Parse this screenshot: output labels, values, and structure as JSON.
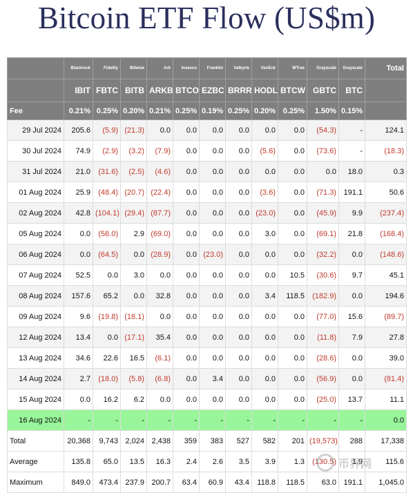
{
  "title": "Bitcoin ETF Flow (US$m)",
  "header": {
    "issuers": [
      "Blackrock",
      "Fidelity",
      "Bitwise",
      "Ark",
      "Invesco",
      "Franklin",
      "Valkyrie",
      "VanEck",
      "WTree",
      "Grayscale",
      "Grayscale"
    ],
    "total_label": "Total",
    "tickers": [
      "IBIT",
      "FBTC",
      "BITB",
      "ARKB",
      "BTCO",
      "EZBC",
      "BRRR",
      "HODL",
      "BTCW",
      "GBTC",
      "BTC"
    ],
    "fee_label": "Fee",
    "fees": [
      "0.21%",
      "0.25%",
      "0.20%",
      "0.21%",
      "0.25%",
      "0.19%",
      "0.25%",
      "0.20%",
      "0.25%",
      "1.50%",
      "0.15%"
    ]
  },
  "rows": [
    {
      "date": "29 Jul 2024",
      "values": [
        "205.6",
        "(5.9)",
        "(21.3)",
        "0.0",
        "0.0",
        "0.0",
        "0.0",
        "0.0",
        "0.0",
        "(54.3)",
        "-"
      ],
      "total": "124.1"
    },
    {
      "date": "30 Jul 2024",
      "values": [
        "74.9",
        "(2.9)",
        "(3.2)",
        "(7.9)",
        "0.0",
        "0.0",
        "0.0",
        "(5.6)",
        "0.0",
        "(73.6)",
        "-"
      ],
      "total": "(18.3)"
    },
    {
      "date": "31 Jul 2024",
      "values": [
        "21.0",
        "(31.6)",
        "(2.5)",
        "(4.6)",
        "0.0",
        "0.0",
        "0.0",
        "0.0",
        "0.0",
        "0.0",
        "18.0"
      ],
      "total": "0.3"
    },
    {
      "date": "01 Aug 2024",
      "values": [
        "25.9",
        "(48.4)",
        "(20.7)",
        "(22.4)",
        "0.0",
        "0.0",
        "0.0",
        "(3.6)",
        "0.0",
        "(71.3)",
        "191.1"
      ],
      "total": "50.6"
    },
    {
      "date": "02 Aug 2024",
      "values": [
        "42.8",
        "(104.1)",
        "(29.4)",
        "(87.7)",
        "0.0",
        "0.0",
        "0.0",
        "(23.0)",
        "0.0",
        "(45.9)",
        "9.9"
      ],
      "total": "(237.4)"
    },
    {
      "date": "05 Aug 2024",
      "values": [
        "0.0",
        "(58.0)",
        "2.9",
        "(69.0)",
        "0.0",
        "0.0",
        "0.0",
        "3.0",
        "0.0",
        "(69.1)",
        "21.8"
      ],
      "total": "(168.4)"
    },
    {
      "date": "06 Aug 2024",
      "values": [
        "0.0",
        "(64.5)",
        "0.0",
        "(28.9)",
        "0.0",
        "(23.0)",
        "0.0",
        "0.0",
        "0.0",
        "(32.2)",
        "0.0"
      ],
      "total": "(148.6)"
    },
    {
      "date": "07 Aug 2024",
      "values": [
        "52.5",
        "0.0",
        "3.0",
        "0.0",
        "0.0",
        "0.0",
        "0.0",
        "0.0",
        "10.5",
        "(30.6)",
        "9.7"
      ],
      "total": "45.1"
    },
    {
      "date": "08 Aug 2024",
      "values": [
        "157.6",
        "65.2",
        "0.0",
        "32.8",
        "0.0",
        "0.0",
        "0.0",
        "3.4",
        "118.5",
        "(182.9)",
        "0.0"
      ],
      "total": "194.6"
    },
    {
      "date": "09 Aug 2024",
      "values": [
        "9.6",
        "(19.8)",
        "(18.1)",
        "0.0",
        "0.0",
        "0.0",
        "0.0",
        "0.0",
        "0.0",
        "(77.0)",
        "15.6"
      ],
      "total": "(89.7)"
    },
    {
      "date": "12 Aug 2024",
      "values": [
        "13.4",
        "0.0",
        "(17.1)",
        "35.4",
        "0.0",
        "0.0",
        "0.0",
        "0.0",
        "0.0",
        "(11.8)",
        "7.9"
      ],
      "total": "27.8"
    },
    {
      "date": "13 Aug 2024",
      "values": [
        "34.6",
        "22.6",
        "16.5",
        "(6.1)",
        "0.0",
        "0.0",
        "0.0",
        "0.0",
        "0.0",
        "(28.6)",
        "0.0"
      ],
      "total": "39.0"
    },
    {
      "date": "14 Aug 2024",
      "values": [
        "2.7",
        "(18.0)",
        "(5.8)",
        "(6.8)",
        "0.0",
        "3.4",
        "0.0",
        "0.0",
        "0.0",
        "(56.9)",
        "0.0"
      ],
      "total": "(81.4)"
    },
    {
      "date": "15 Aug 2024",
      "values": [
        "0.0",
        "16.2",
        "6.2",
        "0.0",
        "0.0",
        "0.0",
        "0.0",
        "0.0",
        "0.0",
        "(25.0)",
        "13.7"
      ],
      "total": "11.1"
    },
    {
      "date": "16 Aug 2024",
      "values": [
        "-",
        "-",
        "-",
        "-",
        "-",
        "-",
        "-",
        "-",
        "-",
        "-",
        "-"
      ],
      "total": "0.0",
      "highlight": true
    }
  ],
  "footer": [
    {
      "label": "Total",
      "values": [
        "20,368",
        "9,743",
        "2,024",
        "2,438",
        "359",
        "383",
        "527",
        "582",
        "201",
        "(19,573)",
        "288"
      ],
      "total": "17,338"
    },
    {
      "label": "Average",
      "values": [
        "135.8",
        "65.0",
        "13.5",
        "16.3",
        "2.4",
        "2.6",
        "3.5",
        "3.9",
        "1.3",
        "(130.5)",
        "1.9"
      ],
      "total": "115.6"
    },
    {
      "label": "Maximum",
      "values": [
        "849.0",
        "473.4",
        "237.9",
        "200.7",
        "63.4",
        "60.9",
        "43.4",
        "118.8",
        "118.5",
        "63.0",
        "191.1"
      ],
      "total": "1,045.0"
    }
  ],
  "watermark_text": "币界网",
  "colors": {
    "header_bg": "#7f7f7f",
    "negative": "#c0392b",
    "highlight_row": "#98f59a",
    "title": "#2a2f5c"
  }
}
